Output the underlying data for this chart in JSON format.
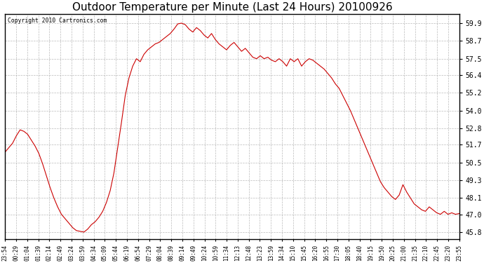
{
  "title": "Outdoor Temperature per Minute (Last 24 Hours) 20100926",
  "copyright": "Copyright 2010 Cartronics.com",
  "line_color": "#cc0000",
  "background_color": "#ffffff",
  "grid_color": "#aaaaaa",
  "title_fontsize": 11,
  "yticks": [
    45.8,
    47.0,
    48.1,
    49.3,
    50.5,
    51.7,
    52.8,
    54.0,
    55.2,
    56.4,
    57.5,
    58.7,
    59.9
  ],
  "ylim": [
    45.3,
    60.5
  ],
  "xtick_labels": [
    "23:54",
    "00:29",
    "01:04",
    "01:39",
    "02:14",
    "02:49",
    "03:24",
    "03:59",
    "04:34",
    "05:09",
    "05:44",
    "06:19",
    "06:54",
    "07:29",
    "08:04",
    "08:39",
    "09:14",
    "09:49",
    "10:24",
    "10:59",
    "11:34",
    "12:13",
    "12:48",
    "13:23",
    "13:59",
    "14:34",
    "15:10",
    "15:45",
    "16:20",
    "16:55",
    "17:30",
    "18:05",
    "18:40",
    "19:15",
    "19:50",
    "20:25",
    "21:00",
    "21:35",
    "22:10",
    "22:45",
    "23:20",
    "23:55"
  ],
  "data_y": [
    51.2,
    51.5,
    51.8,
    52.3,
    52.7,
    52.6,
    52.4,
    52.0,
    51.6,
    51.1,
    50.4,
    49.6,
    48.8,
    48.1,
    47.5,
    47.0,
    46.7,
    46.4,
    46.1,
    45.9,
    45.85,
    45.8,
    46.0,
    46.3,
    46.5,
    46.8,
    47.2,
    47.8,
    48.6,
    49.8,
    51.5,
    53.2,
    55.0,
    56.2,
    57.0,
    57.5,
    57.3,
    57.8,
    58.1,
    58.3,
    58.5,
    58.6,
    58.8,
    59.0,
    59.2,
    59.5,
    59.85,
    59.9,
    59.8,
    59.5,
    59.3,
    59.6,
    59.4,
    59.1,
    58.9,
    59.2,
    58.8,
    58.5,
    58.3,
    58.1,
    58.4,
    58.6,
    58.3,
    58.0,
    58.2,
    57.9,
    57.6,
    57.5,
    57.7,
    57.5,
    57.6,
    57.4,
    57.3,
    57.5,
    57.3,
    57.0,
    57.5,
    57.3,
    57.5,
    57.0,
    57.3,
    57.5,
    57.4,
    57.2,
    57.0,
    56.8,
    56.5,
    56.2,
    55.8,
    55.5,
    55.0,
    54.5,
    54.0,
    53.4,
    52.8,
    52.2,
    51.6,
    51.0,
    50.4,
    49.8,
    49.2,
    48.8,
    48.5,
    48.2,
    48.0,
    48.3,
    49.0,
    48.5,
    48.1,
    47.7,
    47.5,
    47.3,
    47.2,
    47.5,
    47.3,
    47.1,
    47.0,
    47.2,
    47.0,
    47.1,
    47.0,
    47.05
  ]
}
